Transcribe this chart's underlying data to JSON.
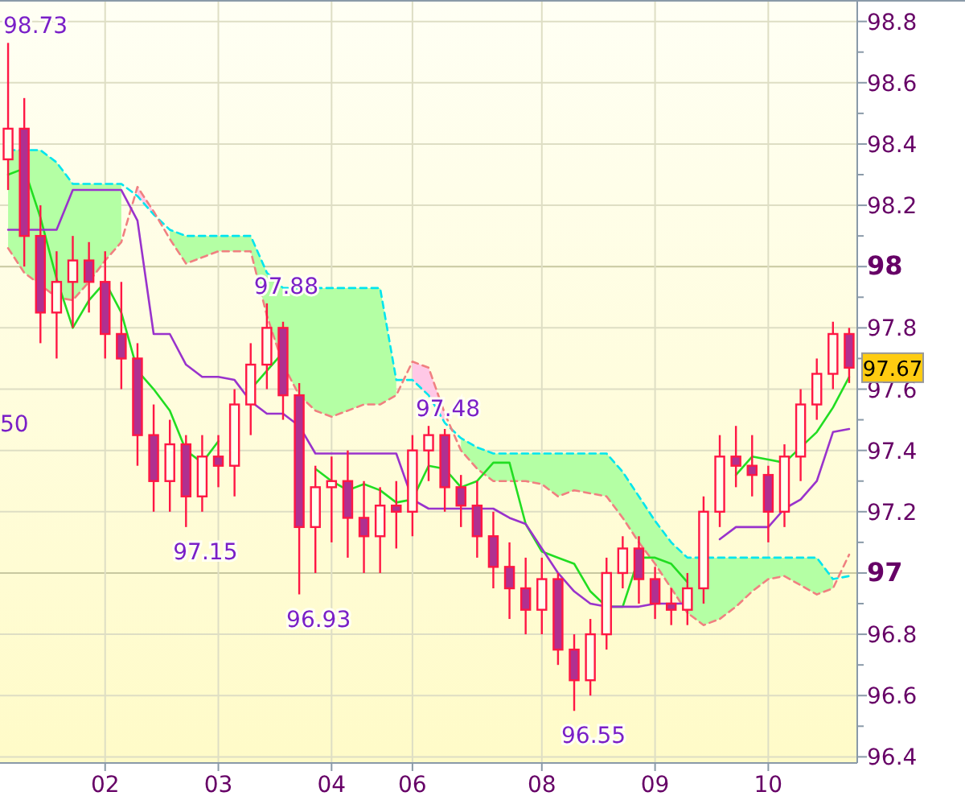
{
  "chart_data": {
    "type": "candlestick",
    "color": "#ff1744",
    "categories": [
      null,
      null,
      null,
      null,
      null,
      null,
      "02",
      null,
      null,
      null,
      null,
      null,
      null,
      "03",
      null,
      null,
      null,
      null,
      null,
      null,
      "04",
      null,
      null,
      null,
      null,
      "06",
      null,
      null,
      null,
      null,
      null,
      null,
      null,
      "08",
      null,
      null,
      null,
      null,
      null,
      null,
      "09",
      null,
      null,
      null,
      null,
      null,
      null,
      "10",
      null,
      null,
      null,
      null,
      null
    ],
    "ohlc": [
      [
        98.35,
        98.73,
        98.25,
        98.45
      ],
      [
        98.45,
        98.55,
        98.0,
        98.1
      ],
      [
        98.1,
        98.2,
        97.75,
        97.85
      ],
      [
        97.85,
        98.05,
        97.7,
        97.95
      ],
      [
        97.95,
        98.1,
        97.8,
        98.02
      ],
      [
        98.02,
        98.08,
        97.85,
        97.95
      ],
      [
        97.95,
        98.05,
        97.7,
        97.78
      ],
      [
        97.78,
        97.95,
        97.6,
        97.7
      ],
      [
        97.7,
        97.75,
        97.35,
        97.45
      ],
      [
        97.45,
        97.55,
        97.2,
        97.3
      ],
      [
        97.3,
        97.5,
        97.2,
        97.42
      ],
      [
        97.42,
        97.45,
        97.15,
        97.25
      ],
      [
        97.25,
        97.45,
        97.2,
        97.38
      ],
      [
        97.38,
        97.45,
        97.28,
        97.35
      ],
      [
        97.35,
        97.6,
        97.25,
        97.55
      ],
      [
        97.55,
        97.75,
        97.45,
        97.68
      ],
      [
        97.68,
        97.88,
        97.6,
        97.8
      ],
      [
        97.8,
        97.82,
        97.5,
        97.58
      ],
      [
        97.58,
        97.62,
        96.93,
        97.15
      ],
      [
        97.15,
        97.35,
        97.0,
        97.28
      ],
      [
        97.28,
        97.38,
        97.1,
        97.3
      ],
      [
        97.3,
        97.4,
        97.05,
        97.18
      ],
      [
        97.18,
        97.3,
        97.0,
        97.12
      ],
      [
        97.12,
        97.28,
        97.0,
        97.22
      ],
      [
        97.22,
        97.3,
        97.08,
        97.2
      ],
      [
        97.2,
        97.45,
        97.12,
        97.4
      ],
      [
        97.4,
        97.48,
        97.3,
        97.45
      ],
      [
        97.45,
        97.47,
        97.2,
        97.28
      ],
      [
        97.28,
        97.32,
        97.15,
        97.22
      ],
      [
        97.22,
        97.3,
        97.05,
        97.12
      ],
      [
        97.12,
        97.2,
        96.95,
        97.02
      ],
      [
        97.02,
        97.1,
        96.85,
        96.95
      ],
      [
        96.95,
        97.05,
        96.8,
        96.88
      ],
      [
        96.88,
        97.05,
        96.8,
        96.98
      ],
      [
        96.98,
        97.0,
        96.7,
        96.75
      ],
      [
        96.75,
        96.8,
        96.55,
        96.65
      ],
      [
        96.65,
        96.85,
        96.6,
        96.8
      ],
      [
        96.8,
        97.05,
        96.75,
        97.0
      ],
      [
        97.0,
        97.12,
        96.95,
        97.08
      ],
      [
        97.08,
        97.12,
        96.9,
        96.98
      ],
      [
        96.98,
        97.02,
        96.85,
        96.9
      ],
      [
        96.9,
        96.95,
        96.83,
        96.88
      ],
      [
        96.88,
        97.0,
        96.83,
        96.95
      ],
      [
        96.95,
        97.25,
        96.9,
        97.2
      ],
      [
        97.2,
        97.45,
        97.15,
        97.38
      ],
      [
        97.38,
        97.48,
        97.28,
        97.35
      ],
      [
        97.35,
        97.45,
        97.25,
        97.32
      ],
      [
        97.32,
        97.35,
        97.1,
        97.2
      ],
      [
        97.2,
        97.42,
        97.15,
        97.38
      ],
      [
        97.38,
        97.6,
        97.3,
        97.55
      ],
      [
        97.55,
        97.7,
        97.5,
        97.65
      ],
      [
        97.65,
        97.82,
        97.6,
        97.78
      ],
      [
        97.78,
        97.8,
        97.62,
        97.67
      ]
    ],
    "series": [
      {
        "type": "line",
        "color": "#00e5ee",
        "line_style": "dashed",
        "values": [
          98.38,
          98.38,
          98.38,
          98.34,
          98.27,
          98.27,
          98.27,
          98.27,
          98.23,
          98.17,
          98.12,
          98.1,
          98.1,
          98.1,
          98.1,
          98.1,
          97.98,
          97.93,
          97.93,
          97.93,
          97.93,
          97.93,
          97.93,
          97.93,
          97.63,
          97.63,
          97.58,
          97.49,
          97.44,
          97.41,
          97.39,
          97.39,
          97.39,
          97.39,
          97.39,
          97.39,
          97.39,
          97.39,
          97.33,
          97.25,
          97.17,
          97.1,
          97.05,
          97.05,
          97.05,
          97.05,
          97.05,
          97.05,
          97.05,
          97.05,
          97.05,
          96.98,
          96.99
        ],
        "upper": [
          98.38,
          98.38,
          98.38,
          98.34,
          98.27,
          98.27,
          98.27,
          98.27,
          null,
          null,
          98.12,
          98.1,
          98.1,
          98.1,
          98.1,
          98.1,
          97.98,
          97.93,
          97.93,
          97.93,
          97.93,
          97.93,
          97.93,
          97.93,
          97.63,
          null,
          null,
          null,
          97.44,
          97.41,
          97.39,
          97.39,
          97.39,
          97.39,
          97.39,
          97.39,
          97.39,
          97.39,
          97.33,
          97.25,
          97.17,
          97.1,
          97.05,
          97.05,
          97.05,
          97.05,
          97.05,
          97.05,
          97.05,
          97.05,
          97.05,
          96.98,
          null
        ],
        "lower": [
          98.06,
          97.98,
          97.94,
          97.9,
          97.89,
          97.95,
          98.02,
          98.08,
          null,
          null,
          98.09,
          98.01,
          98.03,
          98.05,
          98.05,
          98.05,
          97.84,
          97.68,
          97.58,
          97.53,
          97.51,
          97.53,
          97.55,
          97.55,
          97.58,
          null,
          null,
          null,
          97.4,
          97.34,
          97.3,
          97.3,
          97.3,
          97.29,
          97.25,
          97.27,
          97.26,
          97.25,
          97.18,
          97.1,
          97.03,
          96.95,
          96.87,
          96.83,
          96.85,
          96.89,
          96.94,
          96.98,
          96.99,
          96.96,
          96.93,
          96.95,
          null
        ]
      },
      {
        "type": "line",
        "color": "#f08080",
        "line_style": "dashed",
        "values": [
          98.06,
          97.98,
          97.94,
          97.9,
          97.89,
          97.95,
          98.02,
          98.08,
          98.26,
          98.18,
          98.09,
          98.01,
          98.03,
          98.05,
          98.05,
          98.05,
          97.84,
          97.68,
          97.58,
          97.53,
          97.51,
          97.53,
          97.55,
          97.55,
          97.58,
          97.69,
          97.67,
          97.52,
          97.4,
          97.34,
          97.3,
          97.3,
          97.3,
          97.29,
          97.25,
          97.27,
          97.26,
          97.25,
          97.18,
          97.1,
          97.03,
          96.95,
          96.87,
          96.83,
          96.85,
          96.89,
          96.94,
          96.98,
          96.99,
          96.96,
          96.93,
          96.95,
          97.06
        ],
        "upper": [
          null,
          null,
          null,
          null,
          null,
          null,
          null,
          null,
          98.26,
          98.18,
          null,
          null,
          null,
          null,
          null,
          null,
          null,
          null,
          null,
          null,
          null,
          null,
          null,
          null,
          null,
          97.69,
          97.67,
          97.52,
          null,
          null,
          null,
          null,
          null,
          null,
          null,
          null,
          null,
          null,
          null,
          null,
          null,
          null,
          null,
          null,
          null,
          null,
          null,
          null,
          null,
          null,
          null,
          null,
          null
        ],
        "lower": [
          null,
          null,
          null,
          null,
          null,
          null,
          null,
          null,
          98.23,
          98.17,
          null,
          null,
          null,
          null,
          null,
          null,
          null,
          null,
          null,
          null,
          null,
          null,
          null,
          null,
          null,
          97.63,
          97.58,
          97.49,
          null,
          null,
          null,
          null,
          null,
          null,
          null,
          null,
          null,
          null,
          null,
          null,
          null,
          null,
          null,
          null,
          null,
          null,
          null,
          null,
          null,
          null,
          null,
          null,
          null
        ]
      },
      {
        "type": "line",
        "color": "#22dd22",
        "values": [
          98.3,
          98.32,
          98.16,
          97.96,
          97.8,
          97.89,
          97.95,
          97.85,
          97.66,
          97.6,
          97.53,
          97.4,
          97.36,
          97.43,
          null,
          97.6,
          97.66,
          97.72,
          null,
          97.34,
          97.3,
          97.27,
          97.29,
          97.27,
          97.23,
          97.24,
          97.35,
          97.34,
          97.28,
          97.3,
          97.36,
          97.36,
          97.16,
          97.07,
          97.05,
          97.03,
          96.94,
          96.89,
          96.89,
          97.05,
          97.05,
          97.03,
          96.97,
          null,
          null,
          97.32,
          97.38,
          97.37,
          97.36,
          97.41,
          97.46,
          97.54,
          97.64
        ]
      },
      {
        "type": "line",
        "color": "#9933cc",
        "values": [
          98.12,
          98.12,
          98.12,
          98.12,
          98.25,
          98.25,
          98.25,
          98.25,
          98.15,
          97.78,
          97.78,
          97.68,
          97.64,
          97.64,
          97.63,
          97.56,
          97.52,
          97.52,
          97.48,
          97.39,
          97.39,
          97.39,
          97.39,
          97.39,
          97.39,
          97.24,
          97.21,
          97.21,
          97.21,
          97.21,
          97.21,
          97.18,
          97.16,
          97.08,
          97.0,
          96.94,
          96.9,
          96.89,
          96.89,
          96.89,
          96.9,
          96.9,
          96.9,
          null,
          97.11,
          97.15,
          97.15,
          97.15,
          97.21,
          97.24,
          97.3,
          97.46,
          97.47
        ]
      }
    ],
    "ylim": [
      96.38,
      98.87
    ],
    "yticks": [
      96.4,
      {
        "value": 96.5,
        "label": null
      },
      96.6,
      {
        "value": 96.7,
        "label": null
      },
      96.8,
      {
        "value": 96.9,
        "label": null
      },
      97,
      {
        "value": 97.1,
        "label": null
      },
      97.2,
      {
        "value": 97.3,
        "label": null
      },
      97.4,
      {
        "value": 97.5,
        "label": null
      },
      97.6,
      {
        "value": 97.7,
        "label": null
      },
      97.8,
      {
        "value": 97.9,
        "label": null
      },
      98,
      {
        "value": 98.1,
        "label": null
      },
      98.2,
      {
        "value": 98.3,
        "label": null
      },
      98.4,
      {
        "value": 98.5,
        "label": null
      },
      98.6,
      {
        "value": 98.7,
        "label": null
      },
      98.8
    ],
    "grid": true,
    "annotations": [
      "98.73",
      "97.88",
      "97.48",
      "97.15",
      "96.93",
      "96.55",
      "50",
      "97.67"
    ]
  }
}
